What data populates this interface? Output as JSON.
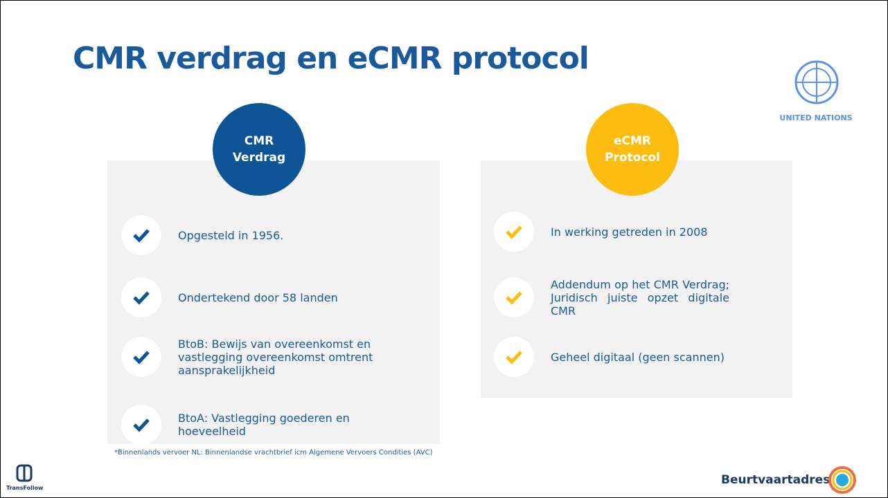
{
  "title": "CMR verdrag en eCMR protocol",
  "un_logo": {
    "label": "UNITED NATIONS"
  },
  "left": {
    "heading": [
      "CMR",
      "Verdrag"
    ],
    "items": [
      "Opgesteld in 1956.",
      "Ondertekend door 58 landen",
      "BtoB: Bewijs van overeenkomst en vastlegging overeenkomst omtrent aansprakelijkheid",
      "BtoA: Vastlegging goederen en hoeveelheid"
    ]
  },
  "right": {
    "heading": [
      "eCMR",
      "Protocol"
    ],
    "items": [
      "In werking getreden in 2008",
      "Addendum op het CMR Verdrag; Juridisch juiste opzet digitale CMR",
      "Geheel digitaal (geen scannen)"
    ]
  },
  "footnote": "*Binnenlands vervoer NL: Binnenlandse vrachtbrief icm Algemene Vervoers Condities (AVC)",
  "footer": {
    "left_logo": "TransFollow",
    "right_logo": "Beurtvaartadres"
  }
}
